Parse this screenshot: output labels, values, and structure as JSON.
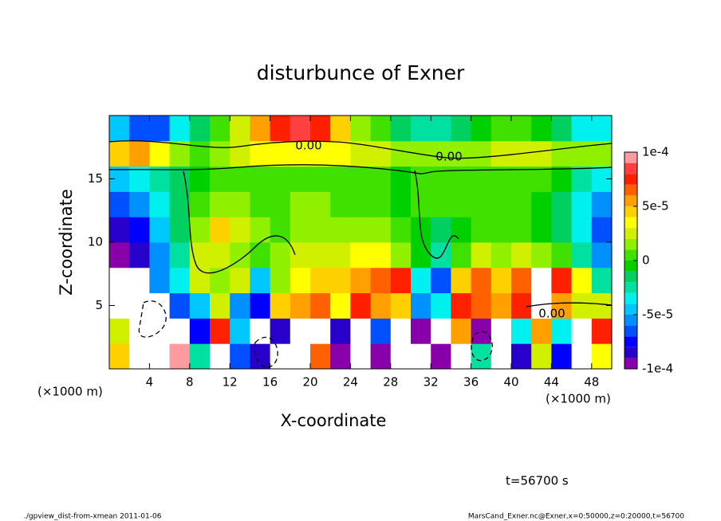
{
  "chart_data": {
    "type": "heatmap",
    "title": "disturbunce of Exner",
    "x_label": "X-coordinate",
    "y_label": "Z-coordinate",
    "x_unit": "(×1000 m)",
    "y_unit": "(×1000 m)",
    "time_label": "t=56700 s",
    "footer_left": "./gpview_dist-from-xmean  2011-01-06",
    "footer_right": "MarsCand_Exner.nc@Exner,x=0:50000,z=0:20000,t=56700",
    "annotations": [
      "0.00",
      "0.00",
      "0.00"
    ],
    "xlim": [
      0,
      50
    ],
    "ylim": [
      0,
      20
    ],
    "xticks": [
      4,
      8,
      12,
      16,
      20,
      24,
      28,
      32,
      36,
      40,
      44,
      48
    ],
    "yticks": [
      5,
      10,
      15
    ],
    "x": [
      1,
      3,
      5,
      7,
      9,
      11,
      13,
      15,
      17,
      19,
      21,
      23,
      25,
      27,
      29,
      31,
      33,
      35,
      37,
      39,
      41,
      43,
      45,
      47,
      49
    ],
    "y": [
      1,
      3,
      5,
      7,
      9,
      11,
      13,
      15,
      17,
      19
    ],
    "values": [
      [
        5e-05,
        0.0002,
        0.0002,
        0.0001,
        -2e-05,
        0.0002,
        -6e-05,
        -8e-05,
        0.0002,
        0.0002,
        7e-05,
        -0.0001,
        0.0002,
        -9e-05,
        0.0002,
        0.0002,
        -0.0001,
        0.0002,
        -2e-05,
        0.0002,
        -8e-05,
        3e-05,
        -7e-05,
        0.0002,
        4e-05
      ],
      [
        3e-05,
        0.0002,
        0.0002,
        0.0002,
        -7e-05,
        8e-05,
        -4e-05,
        0.00015,
        -8e-05,
        0.0002,
        0.00015,
        -8e-05,
        0.0002,
        -6e-05,
        0.0002,
        -0.0001,
        0.0002,
        6e-05,
        -9e-05,
        0.0002,
        -3e-05,
        6e-05,
        -3e-05,
        0.0002,
        8e-05
      ],
      [
        0.0002,
        0.0002,
        0.0002,
        -6e-05,
        -4e-05,
        3e-05,
        -5e-05,
        -7e-05,
        5e-05,
        6e-05,
        7e-05,
        4e-05,
        8e-05,
        6e-05,
        5e-05,
        -5e-05,
        -3e-05,
        8e-05,
        7e-05,
        6e-05,
        8e-05,
        0.0002,
        6e-05,
        3e-05,
        3e-05
      ],
      [
        0.0002,
        0.0002,
        -5e-05,
        -3e-05,
        3e-05,
        2e-05,
        3e-05,
        -4e-05,
        2e-05,
        4e-05,
        5e-05,
        5e-05,
        6e-05,
        7e-05,
        8e-05,
        -3e-05,
        -6e-05,
        5e-05,
        7e-05,
        5e-05,
        7e-05,
        0.00015,
        8e-05,
        4e-05,
        -2e-05
      ],
      [
        -9e-05,
        -8e-05,
        -5e-05,
        -2e-05,
        3e-05,
        3e-05,
        2e-05,
        1e-05,
        2e-05,
        3e-05,
        3e-05,
        3e-05,
        4e-05,
        4e-05,
        2e-05,
        0,
        -2e-05,
        1e-05,
        3e-05,
        2e-05,
        3e-05,
        2e-05,
        1e-05,
        -2e-05,
        -5e-05
      ],
      [
        -8e-05,
        -7e-05,
        -4e-05,
        -1e-05,
        2e-05,
        5e-05,
        3e-05,
        2e-05,
        1e-05,
        2e-05,
        2e-05,
        2e-05,
        2e-05,
        2e-05,
        1e-05,
        0,
        -1e-05,
        0,
        1e-05,
        1e-05,
        1e-05,
        0,
        -1e-05,
        -3e-05,
        -6e-05
      ],
      [
        -6e-05,
        -5e-05,
        -3e-05,
        -1e-05,
        1e-05,
        2e-05,
        2e-05,
        1e-05,
        1e-05,
        2e-05,
        2e-05,
        1e-05,
        1e-05,
        1e-05,
        0,
        1e-05,
        1e-05,
        1e-05,
        1e-05,
        1e-05,
        1e-05,
        0,
        -1e-05,
        -3e-05,
        -5e-05
      ],
      [
        -4e-05,
        -3e-05,
        -2e-05,
        -1e-05,
        0,
        1e-05,
        1e-05,
        1e-05,
        1e-05,
        1e-05,
        1e-05,
        1e-05,
        1e-05,
        1e-05,
        0,
        1e-05,
        1e-05,
        1e-05,
        1e-05,
        1e-05,
        1e-05,
        1e-05,
        0,
        -2e-05,
        -3e-05
      ],
      [
        5e-05,
        6e-05,
        4e-05,
        2e-05,
        1e-05,
        2e-05,
        3e-05,
        4e-05,
        4e-05,
        4e-05,
        4e-05,
        4e-05,
        3e-05,
        3e-05,
        2e-05,
        2e-05,
        2e-05,
        2e-05,
        2e-05,
        3e-05,
        3e-05,
        3e-05,
        2e-05,
        2e-05,
        2e-05
      ],
      [
        -4e-05,
        -6e-05,
        -6e-05,
        -3e-05,
        -1e-05,
        1e-05,
        3e-05,
        6e-05,
        8e-05,
        9e-05,
        8e-05,
        5e-05,
        2e-05,
        1e-05,
        -1e-05,
        -2e-05,
        -2e-05,
        -1e-05,
        0,
        1e-05,
        1e-05,
        0,
        -1e-05,
        -3e-05,
        -3e-05
      ]
    ],
    "levels": [
      -0.0001,
      -9e-05,
      -8e-05,
      -7e-05,
      -6e-05,
      -5e-05,
      -4e-05,
      -3e-05,
      -2e-05,
      -1e-05,
      0,
      1e-05,
      2e-05,
      3e-05,
      4e-05,
      5e-05,
      6e-05,
      7e-05,
      8e-05,
      9e-05,
      0.0001
    ],
    "colors": [
      "#8800aa",
      "#2800cc",
      "#0000ff",
      "#0050ff",
      "#0090ff",
      "#00c8ff",
      "#00f0f0",
      "#00e0a0",
      "#00d060",
      "#00d000",
      "#40e000",
      "#90f000",
      "#d0f000",
      "#ffff00",
      "#ffd000",
      "#ffa000",
      "#ff6000",
      "#ff2000",
      "#ff4040",
      "#ff9aa0"
    ],
    "over_color": "#ffffff",
    "cticks": [
      {
        "value": 0.0001,
        "label": "1e-4"
      },
      {
        "value": 5e-05,
        "label": "5e-5"
      },
      0,
      {
        "value": -5e-05,
        "label": "-5e-5"
      },
      {
        "value": -0.0001,
        "label": "-1e-4"
      }
    ]
  }
}
